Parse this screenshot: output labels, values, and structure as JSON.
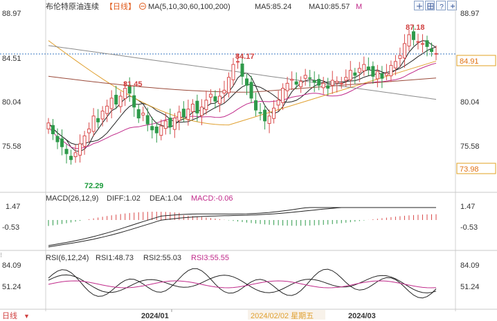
{
  "header": {
    "instrument": "布伦特原油连续",
    "period": "【日线】",
    "ma_label": "MA(5,10,30,60,100,200)",
    "ma5": "MA5:85.24",
    "ma10": "MA10:85.57",
    "ma_more": "M",
    "icons": [
      "plus-minus-icon",
      "grid-icon",
      "question-icon",
      "zoom-in-icon",
      "zoom-out-icon"
    ]
  },
  "price_panel": {
    "axis_labels": [
      "88.97",
      "84.51",
      "80.04",
      "75.58"
    ],
    "right_axis_labels": [
      "88.97",
      "80.04",
      "75.58"
    ],
    "current_price": "84.91",
    "low_price_tag": "73.98",
    "annotations": [
      {
        "text": "87.18",
        "color": "#e04040"
      },
      {
        "text": "84.17",
        "color": "#e04040"
      },
      {
        "text": "81.45",
        "color": "#e04040"
      },
      {
        "text": "72.29",
        "color": "#1a9a3a"
      }
    ]
  },
  "macd_panel": {
    "title": "MACD(26,12,9)",
    "diff": "DIFF:1.02",
    "dea": "DEA:1.04",
    "macd": "MACD:-0.06",
    "axis_labels": [
      "1.47",
      "-0.53"
    ]
  },
  "rsi_panel": {
    "title": "RSI(6,12,24)",
    "rsi1": "RSI1:48.73",
    "rsi2": "RSI2:55.03",
    "rsi3": "RSI3:55.55",
    "axis_labels": [
      "84.09",
      "51.24"
    ]
  },
  "footer": {
    "period_button": "日线",
    "dates": [
      "2024/01",
      "2024/02/02 星期五",
      "2024/03"
    ]
  },
  "colors": {
    "up": "#d94a4a",
    "down": "#2e9a4a",
    "ma5": "#222222",
    "ma10": "#222222",
    "ma30": "#c02a8a",
    "ma60": "#e0a030",
    "ma100": "#9a4a3a",
    "ma200": "#8a8a8a",
    "axis_text": "#333333",
    "current_line": "#3a78c0",
    "low_tag": "#e0a020"
  }
}
